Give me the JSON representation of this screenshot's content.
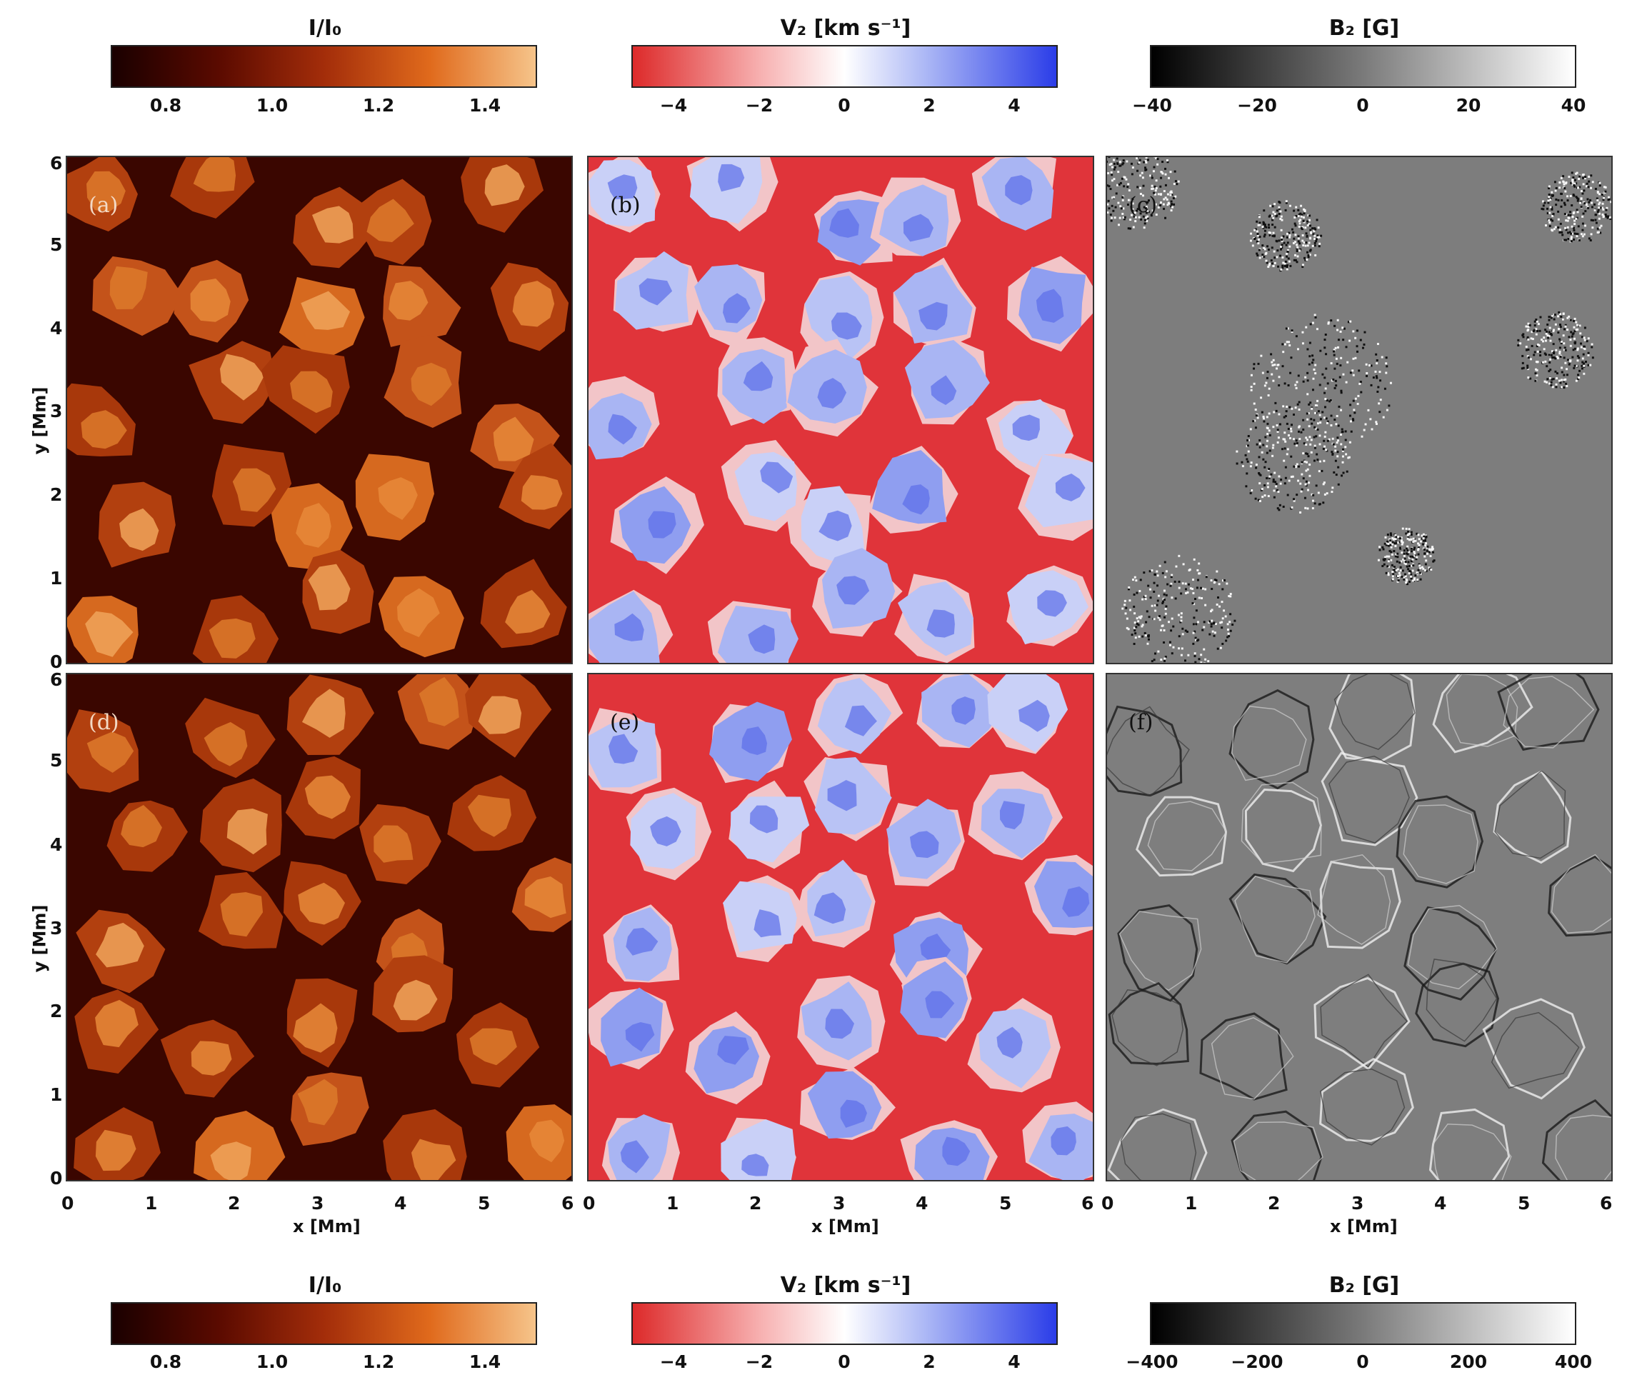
{
  "colorbars_top": {
    "intensity": {
      "title": "I/I₀",
      "ticks": [
        "0.8",
        "1.0",
        "1.2",
        "1.4"
      ],
      "tick_values": [
        0.8,
        1.0,
        1.2,
        1.4
      ],
      "range": [
        0.7,
        1.5
      ]
    },
    "velocity": {
      "title": "V₂ [km s⁻¹]",
      "ticks": [
        "−4",
        "−2",
        "0",
        "2",
        "4"
      ],
      "tick_values": [
        -4,
        -2,
        0,
        2,
        4
      ],
      "range": [
        -5,
        5
      ]
    },
    "field": {
      "title": "B₂ [G]",
      "ticks": [
        "−40",
        "−20",
        "0",
        "20",
        "40"
      ],
      "tick_values": [
        -40,
        -20,
        0,
        20,
        40
      ],
      "range": [
        -40,
        40
      ]
    }
  },
  "colorbars_bottom": {
    "intensity": {
      "title": "I/I₀",
      "ticks": [
        "0.8",
        "1.0",
        "1.2",
        "1.4"
      ],
      "tick_values": [
        0.8,
        1.0,
        1.2,
        1.4
      ],
      "range": [
        0.7,
        1.5
      ]
    },
    "velocity": {
      "title": "V₂ [km s⁻¹]",
      "ticks": [
        "−4",
        "−2",
        "0",
        "2",
        "4"
      ],
      "tick_values": [
        -4,
        -2,
        0,
        2,
        4
      ],
      "range": [
        -5,
        5
      ]
    },
    "field": {
      "title": "B₂ [G]",
      "ticks": [
        "−400",
        "−200",
        "0",
        "200",
        "400"
      ],
      "tick_values": [
        -400,
        -200,
        0,
        200,
        400
      ],
      "range": [
        -400,
        400
      ]
    }
  },
  "panels": {
    "a": "(a)",
    "b": "(b)",
    "c": "(c)",
    "d": "(d)",
    "e": "(e)",
    "f": "(f)"
  },
  "axes": {
    "x_label": "x [Mm]",
    "y_label": "y [Mm]",
    "x_ticks": [
      "0",
      "1",
      "2",
      "3",
      "4",
      "5",
      "6"
    ],
    "y_ticks": [
      "0",
      "1",
      "2",
      "3",
      "4",
      "5",
      "6"
    ]
  },
  "colors": {
    "intensity_scale": [
      "#1a0000",
      "#5a0a00",
      "#a32d0a",
      "#e06a1c",
      "#f6c48a"
    ],
    "velocity_scale": [
      "#dd2a2a",
      "#f7b0b0",
      "#ffffff",
      "#a8b4f5",
      "#2b3de8"
    ],
    "field_scale": [
      "#000000",
      "#7a7a7a",
      "#ffffff"
    ]
  },
  "chart_data": {
    "type": "heatmap",
    "x_range": [
      0,
      6.1
    ],
    "y_range": [
      0,
      6.1
    ],
    "xlabel": "x [Mm]",
    "ylabel": "y [Mm]",
    "panels": [
      {
        "id": "a",
        "quantity": "I/I₀",
        "range": [
          0.7,
          1.5
        ]
      },
      {
        "id": "b",
        "quantity": "V₂ [km s⁻¹]",
        "range": [
          -5,
          5
        ]
      },
      {
        "id": "c",
        "quantity": "B₂ [G]",
        "range": [
          -40,
          40
        ]
      },
      {
        "id": "d",
        "quantity": "I/I₀",
        "range": [
          0.7,
          1.5
        ]
      },
      {
        "id": "e",
        "quantity": "V₂ [km s⁻¹]",
        "range": [
          -5,
          5
        ]
      },
      {
        "id": "f",
        "quantity": "B₂ [G]",
        "range": [
          -400,
          400
        ]
      }
    ]
  }
}
